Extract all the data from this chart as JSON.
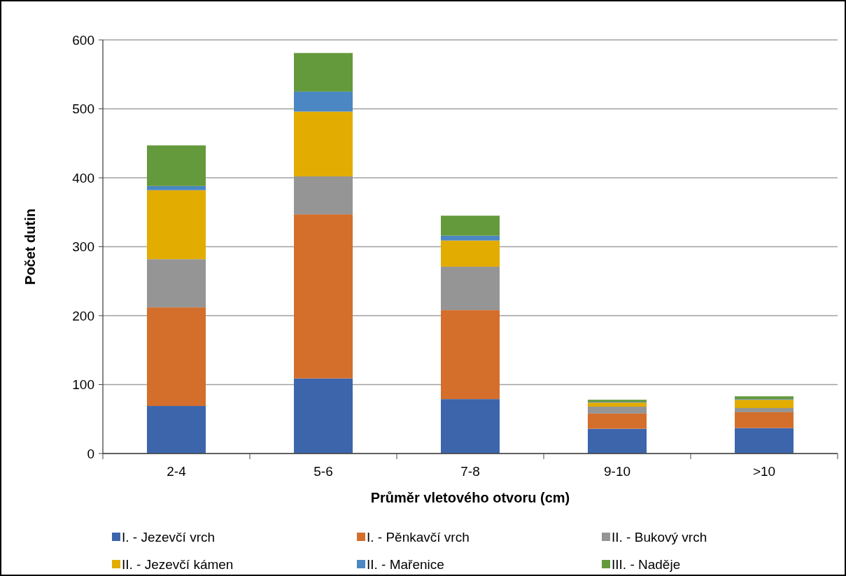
{
  "chart_data": {
    "type": "bar",
    "stacked": true,
    "xlabel": "Průměr vletového otvoru (cm)",
    "ylabel": "Počet dutin",
    "categories": [
      "2-4",
      "5-6",
      "7-8",
      "9-10",
      ">10"
    ],
    "series": [
      {
        "name": "I. - Jezevčí vrch",
        "color": "#3c65ac",
        "values": [
          69,
          109,
          79,
          36,
          37
        ]
      },
      {
        "name": "I. - Pěnkavčí vrch",
        "color": "#d46e2b",
        "values": [
          143,
          238,
          129,
          22,
          23
        ]
      },
      {
        "name": "II. - Bukový vrch",
        "color": "#959595",
        "values": [
          70,
          55,
          63,
          10,
          6
        ]
      },
      {
        "name": "II. - Jezevčí kámen",
        "color": "#e3ac00",
        "values": [
          100,
          94,
          38,
          6,
          12
        ]
      },
      {
        "name": "II. - Mařenice",
        "color": "#4b87c2",
        "values": [
          6,
          29,
          7,
          1,
          1
        ]
      },
      {
        "name": "III. - Naděje",
        "color": "#649a3c",
        "values": [
          59,
          56,
          29,
          3,
          4
        ]
      }
    ],
    "ylim": [
      0,
      600
    ],
    "yticks": [
      0,
      100,
      200,
      300,
      400,
      500,
      600
    ],
    "grid": "y",
    "legend": "bottom"
  }
}
